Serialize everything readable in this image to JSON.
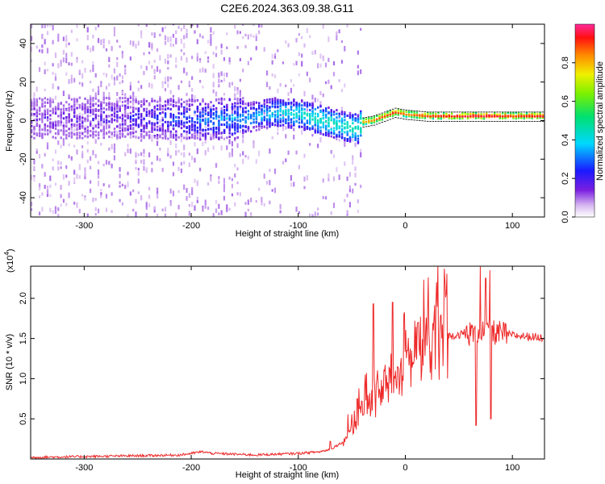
{
  "title": "C2E6.2024.363.09.38.G11",
  "chart_data": [
    {
      "type": "heatmap",
      "title": "",
      "xlabel": "Height of straight line (km)",
      "ylabel": "Frequency (Hz)",
      "xlim": [
        -350,
        130
      ],
      "ylim": [
        -50,
        50
      ],
      "xticks": [
        -300,
        -200,
        -100,
        0,
        100
      ],
      "xtick_labels": [
        "-300",
        "-200",
        "-100",
        "0",
        "100"
      ],
      "yticks": [
        -40,
        -20,
        0,
        20,
        40
      ],
      "ytick_labels": [
        "-40",
        "-20",
        "0",
        "20",
        "40"
      ],
      "colorbar": {
        "label": "Normalized spectral amplitude",
        "range": [
          0,
          1
        ],
        "ticks": [
          0.0,
          0.2,
          0.4,
          0.6,
          0.8
        ],
        "tick_labels": [
          "0.0",
          "0.2",
          "0.4",
          "0.6",
          "0.8"
        ],
        "colormap": "rainbow (white-violet-blue-cyan-green-yellow-orange-red-magenta)"
      },
      "ridge": {
        "height_km": [
          -350,
          -300,
          -250,
          -200,
          -150,
          -120,
          -100,
          -80,
          -60,
          -45,
          -40,
          -30,
          -20,
          -10,
          0,
          20,
          60,
          80,
          100,
          130
        ],
        "frequency_hz": [
          1,
          1,
          1,
          0,
          1,
          4,
          3,
          0,
          -3,
          -5,
          -1,
          0,
          2,
          4,
          3,
          2,
          2,
          2,
          2,
          2
        ],
        "peak_amplitude": [
          0.12,
          0.15,
          0.2,
          0.3,
          0.35,
          0.4,
          0.45,
          0.5,
          0.5,
          0.55,
          0.8,
          0.85,
          0.9,
          0.9,
          0.85,
          0.9,
          0.95,
          0.95,
          0.9,
          0.95
        ]
      }
    },
    {
      "type": "line",
      "title": "",
      "xlabel": "Height of straight line (km)",
      "ylabel": "SNR (10 * v/v)",
      "y_multiplier_label": "(x10",
      "y_multiplier_exp": "4",
      "y_multiplier_close": ")",
      "xlim": [
        -350,
        130
      ],
      "ylim": [
        0,
        24000
      ],
      "xticks": [
        -300,
        -200,
        -100,
        0,
        100
      ],
      "xtick_labels": [
        "-300",
        "-200",
        "-100",
        "0",
        "100"
      ],
      "yticks": [
        5000,
        10000,
        15000,
        20000
      ],
      "ytick_labels": [
        "0.5",
        "1.0",
        "1.5",
        "2.0"
      ],
      "series": [
        {
          "color": "#ee2a2a",
          "x": [
            -350,
            -300,
            -250,
            -210,
            -200,
            -190,
            -180,
            -160,
            -140,
            -120,
            -100,
            -80,
            -70,
            -60,
            -55,
            -50,
            -40,
            -30,
            -20,
            -10,
            0,
            10,
            20,
            30,
            40,
            50,
            60,
            65,
            70,
            75,
            80,
            85,
            90,
            100,
            110,
            120,
            130
          ],
          "y": [
            200,
            300,
            400,
            500,
            700,
            900,
            700,
            600,
            500,
            600,
            700,
            900,
            1200,
            2000,
            3000,
            4000,
            6000,
            7500,
            9000,
            10000,
            11000,
            12500,
            14000,
            15000,
            15300,
            15500,
            15600,
            15800,
            16000,
            15900,
            15800,
            15700,
            15600,
            15400,
            15300,
            15200,
            15100
          ],
          "spikes": [
            {
              "x": -70,
              "y": 2200
            },
            {
              "x": -45,
              "y": 7500
            },
            {
              "x": -30,
              "y": 19300
            },
            {
              "x": -12,
              "y": 19500
            },
            {
              "x": 2,
              "y": 13500
            },
            {
              "x": 12,
              "y": 17000
            },
            {
              "x": 70,
              "y": 24000
            },
            {
              "x": 75,
              "y": 22500
            },
            {
              "x": 79,
              "y": 23500
            },
            {
              "x": 66,
              "y": 4200
            },
            {
              "x": 80,
              "y": 5000
            }
          ]
        }
      ]
    }
  ]
}
